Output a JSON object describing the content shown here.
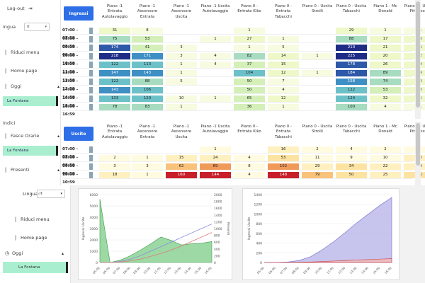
{
  "sidebar": {
    "logout": "Log-out",
    "lingua": "ingua",
    "lingua_value": "it",
    "riduci": "Riduci menu",
    "home": "Home page",
    "oggi": "Oggi",
    "la_fontana_1": "La Fontana",
    "indici": "Indici",
    "fasce": "Fasce Orarie",
    "la_fontana_2": "La Fontana",
    "presenti": "Presenti"
  },
  "sidebar2": {
    "lingua": "Lingua:",
    "lingua_value": "it",
    "riduci": "Riduci menu",
    "home": "Home page",
    "oggi": "Oggi",
    "la_fontana": "La Fontana"
  },
  "ingressi": {
    "button": "Ingressi",
    "columns": [
      "Piano -1 Entrata Autolavaggio",
      "Piano -1 Ascensore Entrata",
      "Piano -1 Ascensore Uscita",
      "Piano -1 Uscita Autolavaggio",
      "Piano 0 - Entrata Kiko",
      "Piano 0 - Entrata Tabacchi",
      "Piano 0 - Uscita Strolli",
      "Piano 0 - Uscita Tabacchi",
      "Piano 1 - Mc Donald",
      "Piano 1 - Uscita Pittarosso"
    ],
    "rows": [
      {
        "time": "07:00 - 07:59",
        "cells": [
          "31",
          "8",
          "",
          "",
          "1",
          "",
          "",
          "29",
          "1",
          "11"
        ]
      },
      {
        "time": "08:00 - 08:59",
        "cells": [
          "75",
          "53",
          "",
          "1",
          "27",
          "1",
          "",
          "88",
          "17",
          "13"
        ]
      },
      {
        "time": "09:00 - 09:59",
        "cells": [
          "174",
          "41",
          "3",
          "",
          "1",
          "5",
          "",
          "210",
          "21",
          "26"
        ]
      },
      {
        "time": "10:00 - 10:59",
        "cells": [
          "218",
          "171",
          "3",
          "4",
          "82",
          "14",
          "1",
          "225",
          "20",
          "32"
        ]
      },
      {
        "time": "11:00 - 11:59",
        "cells": [
          "122",
          "113",
          "1",
          "4",
          "37",
          "15",
          "",
          "178",
          "26",
          "19"
        ]
      },
      {
        "time": "12:00 - 12:59",
        "cells": [
          "147",
          "143",
          "1",
          "",
          "104",
          "12",
          "1",
          "184",
          "89",
          "24"
        ]
      },
      {
        "time": "13:00 - 13:59",
        "cells": [
          "122",
          "88",
          "5",
          "",
          "50",
          "7",
          "",
          "158",
          "74",
          "28"
        ]
      },
      {
        "time": "14:00 - 14:59",
        "cells": [
          "143",
          "106",
          "",
          "",
          "50",
          "4",
          "",
          "122",
          "53",
          "28"
        ]
      },
      {
        "time": "15:00 - 15:59",
        "cells": [
          "133",
          "120",
          "10",
          "1",
          "65",
          "12",
          "",
          "124",
          "32",
          "15"
        ]
      },
      {
        "time": "16:00 - 16:59",
        "cells": [
          "78",
          "83",
          "1",
          "",
          "36",
          "1",
          "",
          "100",
          "4",
          "11"
        ]
      }
    ]
  },
  "uscite": {
    "button": "Uscite",
    "columns": [
      "Piano -1 Entrata Autolavaggio",
      "Piano -1 Ascensore Entrata",
      "Piano -1 Ascensore Uscita",
      "Piano -1 Uscita Autolavaggio",
      "Piano 0 - Entrata Kiko",
      "Piano 0 - Entrata Tabacchi",
      "Piano 0 - Uscita Strolli",
      "Piano 0 - Uscita Tabacchi",
      "Piano 1 - Mc Donald",
      "Piano 1 - Uscita Pittarosso"
    ],
    "rows": [
      {
        "time": "07:00 - 07:59",
        "cells": [
          "",
          "",
          "",
          "1",
          "",
          "16",
          "2",
          "4",
          "2",
          "2"
        ]
      },
      {
        "time": "08:00 - 08:59",
        "cells": [
          "2",
          "1",
          "15",
          "24",
          "4",
          "53",
          "11",
          "9",
          "10",
          "13"
        ]
      },
      {
        "time": "09:00 - 09:59",
        "cells": [
          "3",
          "3",
          "62",
          "89",
          "8",
          "102",
          "29",
          "34",
          "22",
          "24"
        ]
      },
      {
        "time": "10:00 - 10:59",
        "cells": [
          "18",
          "1",
          "160",
          "144",
          "4",
          "148",
          "79",
          "50",
          "25",
          "36"
        ]
      }
    ]
  },
  "chart_left": {
    "yleft_label": "Ingressi Uscite",
    "yright_label": "Presenti",
    "yleft_ticks": [
      "6000",
      "5000",
      "4000",
      "3000",
      "2000",
      "1000",
      "0"
    ],
    "yright_ticks": [
      "2000",
      "1800",
      "1600",
      "1400",
      "1200",
      "1000",
      "800",
      "600",
      "400",
      "200",
      "0"
    ],
    "xticks": [
      "05:00",
      "06:00",
      "07:00",
      "08:00",
      "09:00",
      "10:00",
      "11:00",
      "12:00",
      "13:00",
      "14:00",
      "15:00",
      "16:00"
    ]
  },
  "chart_right": {
    "ylabel": "Ingressi Uscite",
    "yticks": [
      "1400",
      "1200",
      "1000",
      "800",
      "600",
      "400",
      "200",
      "0"
    ],
    "xticks": [
      "05:00",
      "06:00",
      "07:00",
      "08:00",
      "09:00",
      "10:00",
      "11:00",
      "12:00",
      "13:00",
      "14:00",
      "15:00",
      "16:00"
    ]
  },
  "chart_data": [
    {
      "type": "area",
      "title": "",
      "xlabel": "",
      "ylabel": "Ingressi Uscite",
      "ylim": [
        0,
        6000
      ],
      "x": [
        "05:00",
        "06:00",
        "07:00",
        "08:00",
        "09:00",
        "10:00",
        "11:00",
        "12:00",
        "13:00",
        "14:00",
        "15:00",
        "16:00"
      ],
      "series": [
        {
          "values": [
            5600,
            0,
            200,
            600,
            1100,
            1650,
            2250,
            1950,
            1550,
            1650,
            1700,
            1850
          ]
        },
        {
          "values": [
            0,
            0,
            100,
            300,
            600,
            1000,
            1400,
            1800,
            2200,
            2600,
            3000,
            3400
          ]
        },
        {
          "values": [
            0,
            0,
            50,
            150,
            300,
            550,
            800,
            1100,
            1450,
            1850,
            2250,
            2650
          ]
        }
      ]
    },
    {
      "type": "area",
      "title": "",
      "xlabel": "",
      "ylabel": "Ingressi Uscite",
      "ylim": [
        0,
        1400
      ],
      "x": [
        "05:00",
        "06:00",
        "07:00",
        "08:00",
        "09:00",
        "10:00",
        "11:00",
        "12:00",
        "13:00",
        "14:00",
        "15:00",
        "16:00"
      ],
      "series": [
        {
          "values": [
            0,
            0,
            10,
            40,
            120,
            260,
            430,
            620,
            820,
            1000,
            1180,
            1340
          ]
        },
        {
          "values": [
            0,
            0,
            2,
            5,
            10,
            20,
            30,
            40,
            50,
            60,
            70,
            80
          ]
        }
      ]
    }
  ]
}
